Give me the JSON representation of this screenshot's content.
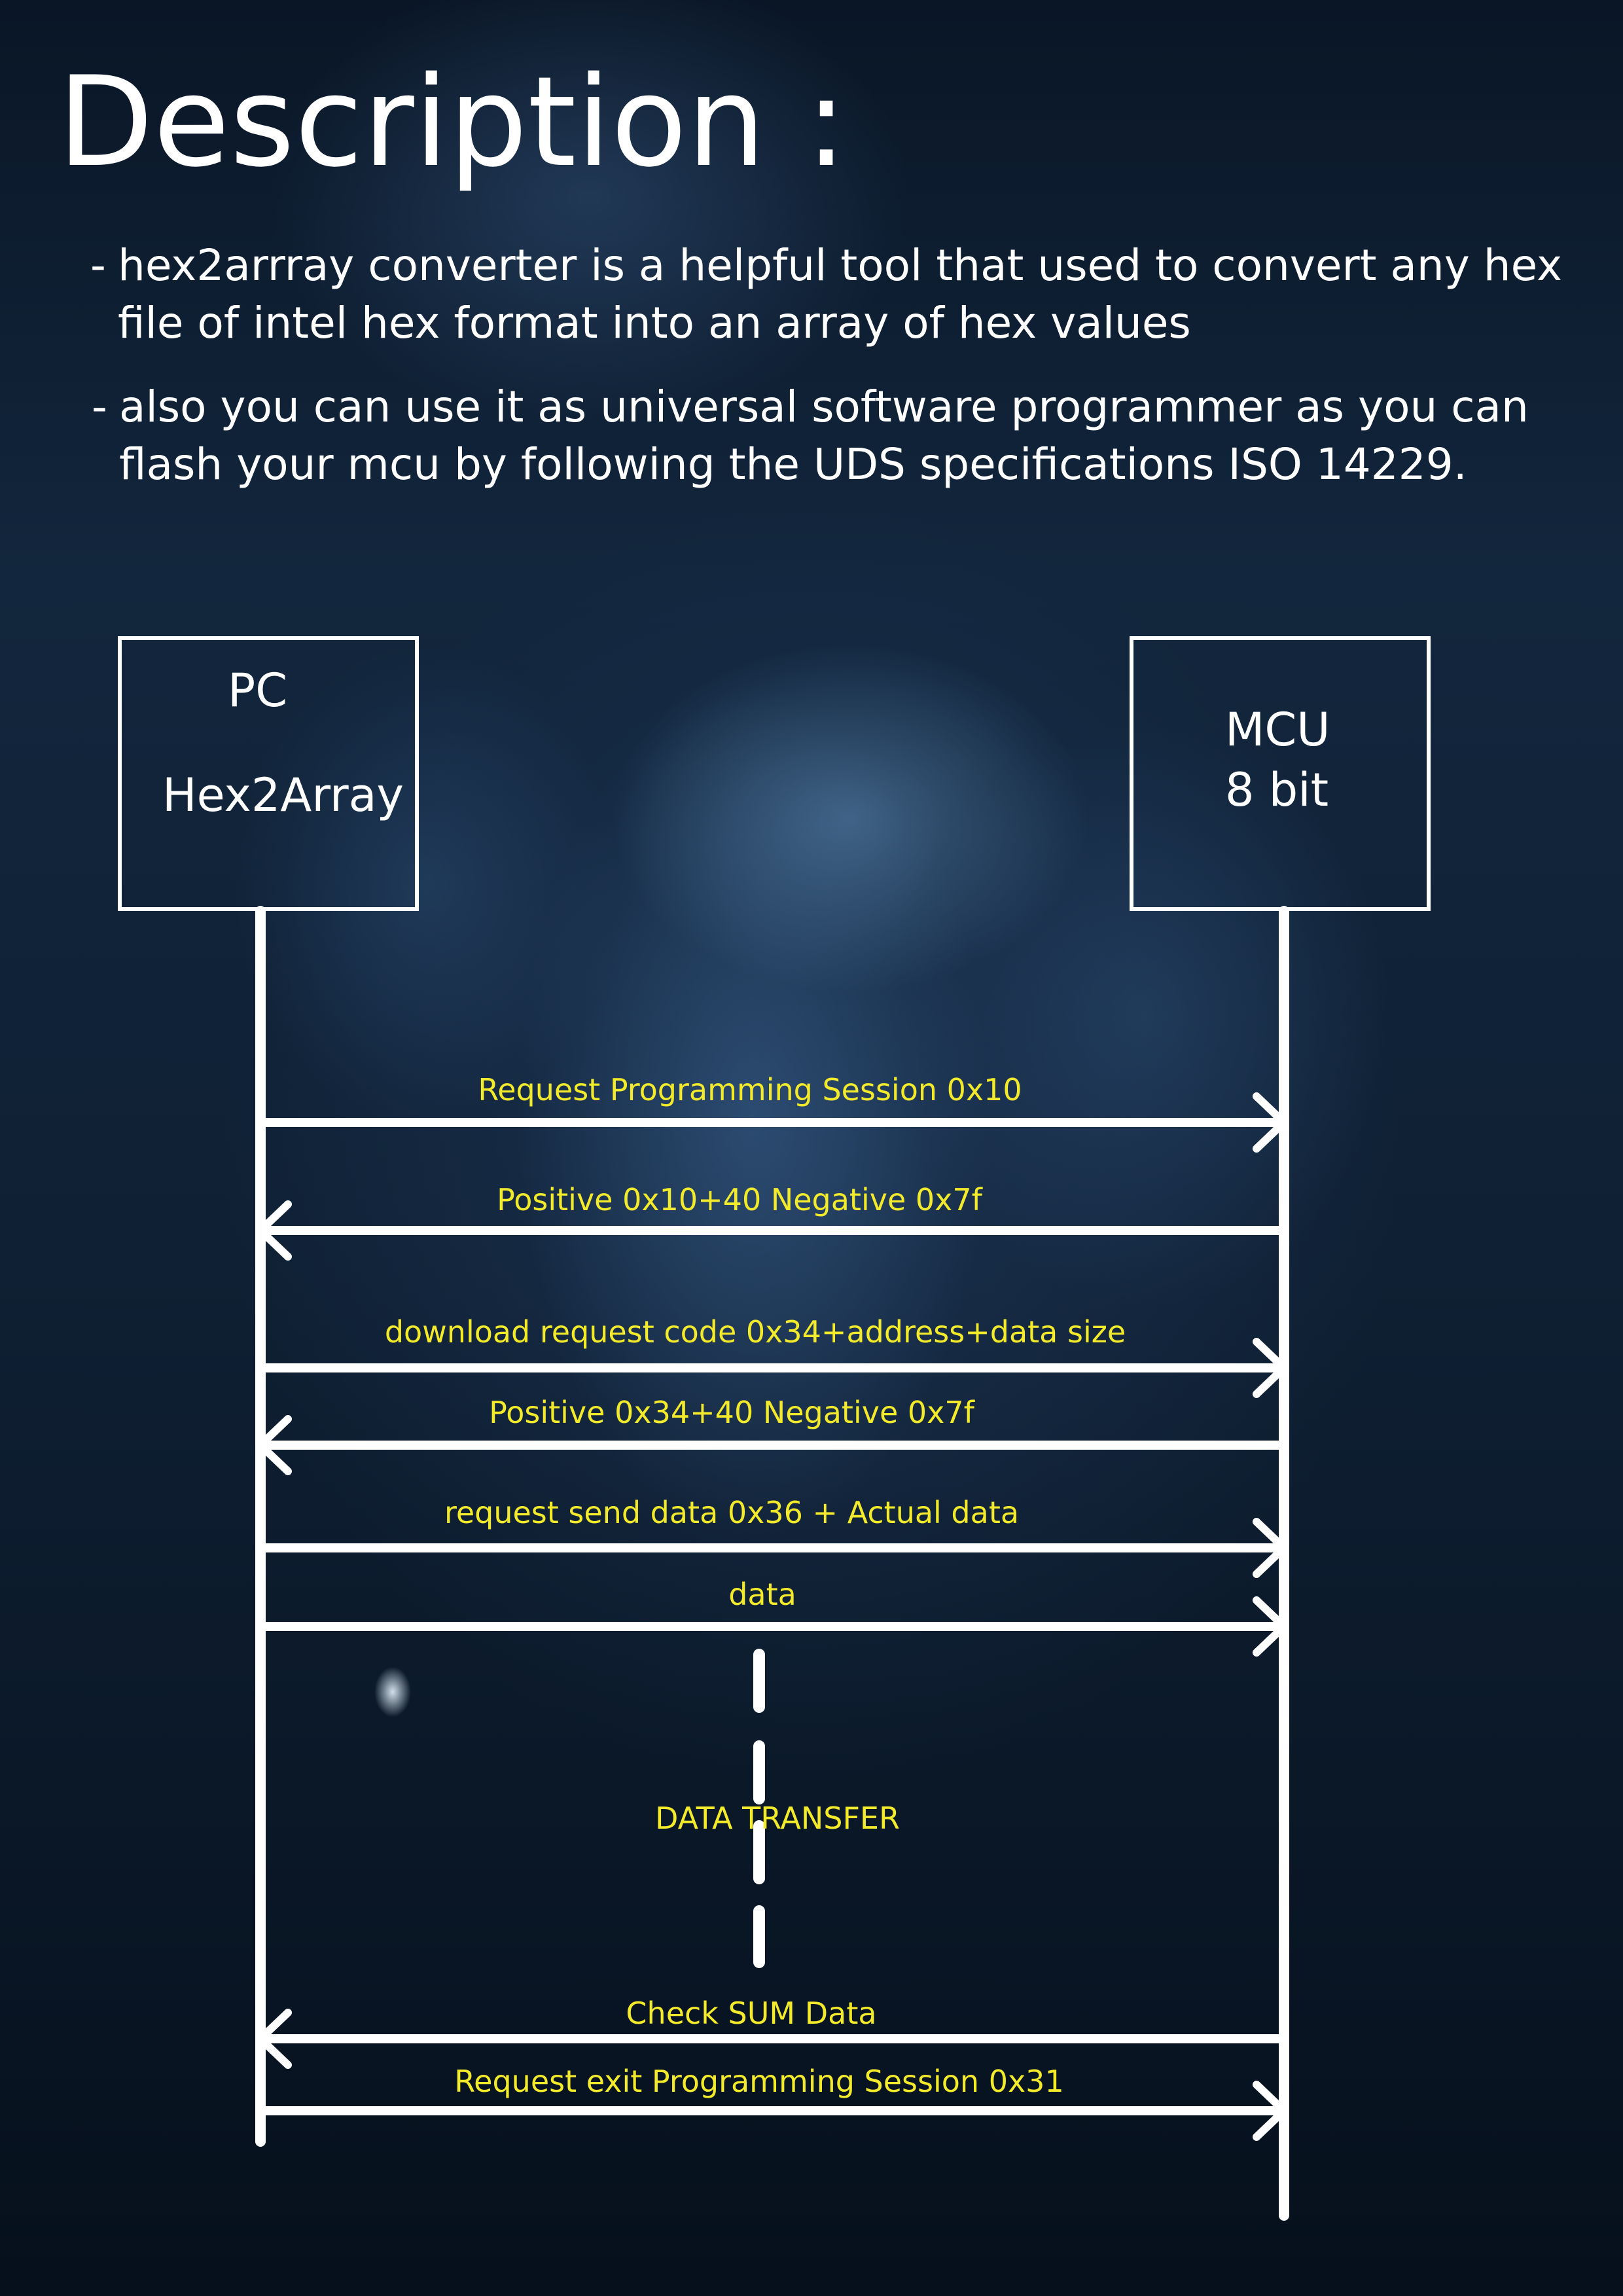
{
  "description": {
    "heading": "Description :",
    "items": [
      {
        "dash": "-",
        "text": "hex2arrray converter is a helpful tool that used to convert  any hex file of intel hex format into an array of hex values"
      },
      {
        "dash": "-",
        "text": "also you can use it as universal software programmer as you can flash your mcu by following the UDS specifications ISO 14229."
      }
    ]
  },
  "participants": {
    "pc": {
      "line1": "PC",
      "line2": "Hex2Array"
    },
    "mcu": {
      "line1": "MCU",
      "line2": "8 bit"
    }
  },
  "messages": [
    {
      "label": "Request Programming Session  0x10",
      "direction": "pc-to-mcu"
    },
    {
      "label": "Positive 0x10+40        Negative 0x7f",
      "direction": "mcu-to-pc"
    },
    {
      "label": "download request code 0x34+address+data size",
      "direction": "pc-to-mcu"
    },
    {
      "label": "Positive 0x34+40          Negative 0x7f",
      "direction": "mcu-to-pc"
    },
    {
      "label": "request send data 0x36 + Actual data",
      "direction": "pc-to-mcu"
    },
    {
      "label": "data",
      "direction": "pc-to-mcu"
    },
    {
      "label": "Check SUM Data",
      "direction": "mcu-to-pc"
    },
    {
      "label": "Request exit Programming Session  0x31",
      "direction": "pc-to-mcu"
    }
  ],
  "transfer_label": "DATA TRANSFER",
  "colors": {
    "text": "#ffffff",
    "message_label": "#f2ea2a",
    "lines": "#ffffff",
    "background": "#0f2034"
  }
}
